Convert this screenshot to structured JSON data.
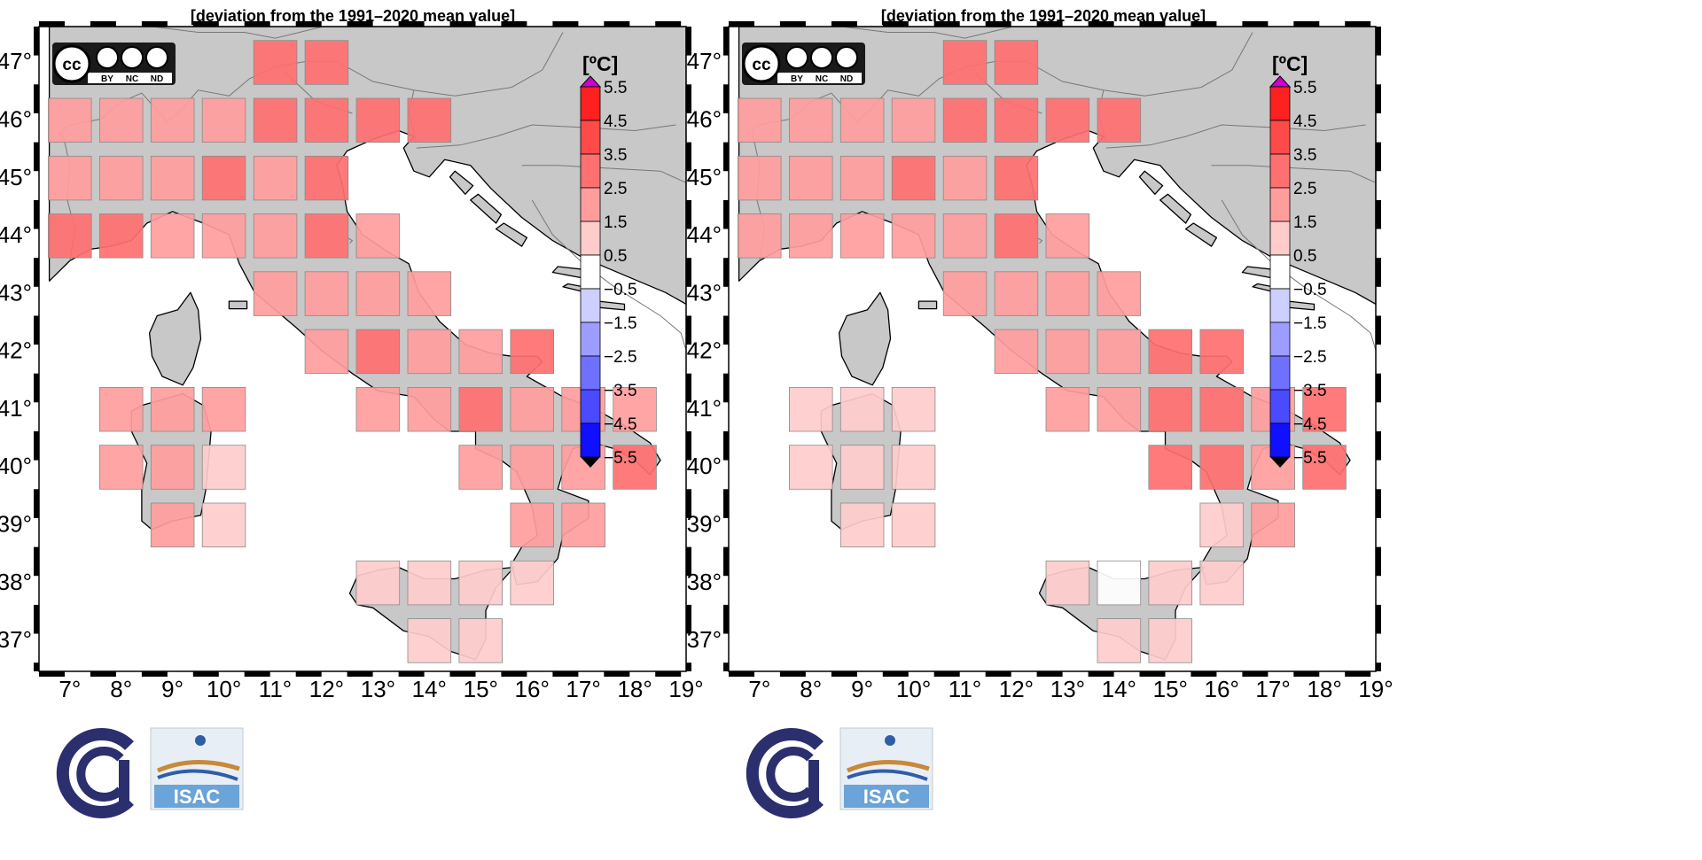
{
  "figure": {
    "colors": {
      "land": "#c8c8c8",
      "sea": "#ffffff",
      "coast": "#000000",
      "border": "#777777",
      "over_arrow": "#cc00cc",
      "under_arrow": "#000000"
    }
  },
  "colorbar": {
    "unit": "[ºC]",
    "levels": [
      "5.5",
      "4.5",
      "3.5",
      "2.5",
      "1.5",
      "0.5",
      "−0.5",
      "−1.5",
      "−2.5",
      "−3.5",
      "−4.5",
      "−5.5"
    ],
    "classes": [
      {
        "range": "4.5 to 5.5",
        "color": "#ff2020"
      },
      {
        "range": "3.5 to 4.5",
        "color": "#ff4a4a"
      },
      {
        "range": "2.5 to 3.5",
        "color": "#ff7070"
      },
      {
        "range": "1.5 to 2.5",
        "color": "#ff9d9d"
      },
      {
        "range": "0.5 to 1.5",
        "color": "#ffcccc"
      },
      {
        "range": "-0.5 to 0.5",
        "color": "#ffffff"
      },
      {
        "range": "-1.5 to -0.5",
        "color": "#cccfff"
      },
      {
        "range": "-2.5 to -1.5",
        "color": "#9d9dff"
      },
      {
        "range": "-3.5 to -2.5",
        "color": "#7070ff"
      },
      {
        "range": "-4.5 to -3.5",
        "color": "#4a4aff"
      },
      {
        "range": "-5.5 to -4.5",
        "color": "#1010ff"
      }
    ]
  },
  "axes": {
    "lon_ticks": [
      "7°",
      "8°",
      "9°",
      "10°",
      "11°",
      "12°",
      "13°",
      "14°",
      "15°",
      "16°",
      "17°",
      "18°",
      "19°"
    ],
    "lat_ticks": [
      "47°",
      "46°",
      "45°",
      "44°",
      "43°",
      "42°",
      "41°",
      "40°",
      "39°",
      "38°",
      "37°"
    ]
  },
  "logos": {
    "license": {
      "cc": "cc",
      "by": "BY",
      "nc": "NC",
      "nd": "ND"
    },
    "institute": "ISAC"
  },
  "maps": [
    {
      "title": "[deviation from the 1991–2020 mean value]",
      "cells": [
        {
          "lon": 11,
          "lat": 47,
          "class": 2
        },
        {
          "lon": 12,
          "lat": 47,
          "class": 2
        },
        {
          "lon": 7,
          "lat": 46,
          "class": 3
        },
        {
          "lon": 8,
          "lat": 46,
          "class": 3
        },
        {
          "lon": 9,
          "lat": 46,
          "class": 3
        },
        {
          "lon": 10,
          "lat": 46,
          "class": 3
        },
        {
          "lon": 11,
          "lat": 46,
          "class": 2
        },
        {
          "lon": 12,
          "lat": 46,
          "class": 2
        },
        {
          "lon": 13,
          "lat": 46,
          "class": 2
        },
        {
          "lon": 14,
          "lat": 46,
          "class": 2
        },
        {
          "lon": 7,
          "lat": 45,
          "class": 3
        },
        {
          "lon": 8,
          "lat": 45,
          "class": 3
        },
        {
          "lon": 9,
          "lat": 45,
          "class": 3
        },
        {
          "lon": 10,
          "lat": 45,
          "class": 2
        },
        {
          "lon": 11,
          "lat": 45,
          "class": 3
        },
        {
          "lon": 12,
          "lat": 45,
          "class": 2
        },
        {
          "lon": 7,
          "lat": 44,
          "class": 2
        },
        {
          "lon": 8,
          "lat": 44,
          "class": 2
        },
        {
          "lon": 9,
          "lat": 44,
          "class": 3
        },
        {
          "lon": 10,
          "lat": 44,
          "class": 3
        },
        {
          "lon": 11,
          "lat": 44,
          "class": 3
        },
        {
          "lon": 12,
          "lat": 44,
          "class": 2
        },
        {
          "lon": 13,
          "lat": 44,
          "class": 3
        },
        {
          "lon": 11,
          "lat": 43,
          "class": 3
        },
        {
          "lon": 12,
          "lat": 43,
          "class": 3
        },
        {
          "lon": 13,
          "lat": 43,
          "class": 3
        },
        {
          "lon": 14,
          "lat": 43,
          "class": 3
        },
        {
          "lon": 12,
          "lat": 42,
          "class": 3
        },
        {
          "lon": 13,
          "lat": 42,
          "class": 2
        },
        {
          "lon": 14,
          "lat": 42,
          "class": 3
        },
        {
          "lon": 15,
          "lat": 42,
          "class": 3
        },
        {
          "lon": 16,
          "lat": 42,
          "class": 2
        },
        {
          "lon": 8,
          "lat": 41,
          "class": 3
        },
        {
          "lon": 9,
          "lat": 41,
          "class": 3
        },
        {
          "lon": 10,
          "lat": 41,
          "class": 3
        },
        {
          "lon": 13,
          "lat": 41,
          "class": 3
        },
        {
          "lon": 14,
          "lat": 41,
          "class": 3
        },
        {
          "lon": 15,
          "lat": 41,
          "class": 2
        },
        {
          "lon": 16,
          "lat": 41,
          "class": 3
        },
        {
          "lon": 17,
          "lat": 41,
          "class": 3
        },
        {
          "lon": 18,
          "lat": 41,
          "class": 3
        },
        {
          "lon": 8,
          "lat": 40,
          "class": 3
        },
        {
          "lon": 9,
          "lat": 40,
          "class": 3
        },
        {
          "lon": 10,
          "lat": 40,
          "class": 4
        },
        {
          "lon": 15,
          "lat": 40,
          "class": 3
        },
        {
          "lon": 16,
          "lat": 40,
          "class": 3
        },
        {
          "lon": 17,
          "lat": 40,
          "class": 3
        },
        {
          "lon": 18,
          "lat": 40,
          "class": 2
        },
        {
          "lon": 9,
          "lat": 39,
          "class": 3
        },
        {
          "lon": 10,
          "lat": 39,
          "class": 4
        },
        {
          "lon": 16,
          "lat": 39,
          "class": 3
        },
        {
          "lon": 17,
          "lat": 39,
          "class": 3
        },
        {
          "lon": 13,
          "lat": 38,
          "class": 4
        },
        {
          "lon": 14,
          "lat": 38,
          "class": 4
        },
        {
          "lon": 15,
          "lat": 38,
          "class": 4
        },
        {
          "lon": 16,
          "lat": 38,
          "class": 4
        },
        {
          "lon": 14,
          "lat": 37,
          "class": 4
        },
        {
          "lon": 15,
          "lat": 37,
          "class": 4
        }
      ]
    },
    {
      "title": "[deviation from the 1991–2020 mean value]",
      "cells": [
        {
          "lon": 11,
          "lat": 47,
          "class": 2
        },
        {
          "lon": 12,
          "lat": 47,
          "class": 2
        },
        {
          "lon": 7,
          "lat": 46,
          "class": 3
        },
        {
          "lon": 8,
          "lat": 46,
          "class": 3
        },
        {
          "lon": 9,
          "lat": 46,
          "class": 3
        },
        {
          "lon": 10,
          "lat": 46,
          "class": 3
        },
        {
          "lon": 11,
          "lat": 46,
          "class": 2
        },
        {
          "lon": 12,
          "lat": 46,
          "class": 2
        },
        {
          "lon": 13,
          "lat": 46,
          "class": 2
        },
        {
          "lon": 14,
          "lat": 46,
          "class": 2
        },
        {
          "lon": 7,
          "lat": 45,
          "class": 3
        },
        {
          "lon": 8,
          "lat": 45,
          "class": 3
        },
        {
          "lon": 9,
          "lat": 45,
          "class": 3
        },
        {
          "lon": 10,
          "lat": 45,
          "class": 2
        },
        {
          "lon": 11,
          "lat": 45,
          "class": 3
        },
        {
          "lon": 12,
          "lat": 45,
          "class": 2
        },
        {
          "lon": 7,
          "lat": 44,
          "class": 3
        },
        {
          "lon": 8,
          "lat": 44,
          "class": 3
        },
        {
          "lon": 9,
          "lat": 44,
          "class": 3
        },
        {
          "lon": 10,
          "lat": 44,
          "class": 3
        },
        {
          "lon": 11,
          "lat": 44,
          "class": 3
        },
        {
          "lon": 12,
          "lat": 44,
          "class": 2
        },
        {
          "lon": 13,
          "lat": 44,
          "class": 3
        },
        {
          "lon": 11,
          "lat": 43,
          "class": 3
        },
        {
          "lon": 12,
          "lat": 43,
          "class": 3
        },
        {
          "lon": 13,
          "lat": 43,
          "class": 3
        },
        {
          "lon": 14,
          "lat": 43,
          "class": 3
        },
        {
          "lon": 12,
          "lat": 42,
          "class": 3
        },
        {
          "lon": 13,
          "lat": 42,
          "class": 3
        },
        {
          "lon": 14,
          "lat": 42,
          "class": 3
        },
        {
          "lon": 15,
          "lat": 42,
          "class": 2
        },
        {
          "lon": 16,
          "lat": 42,
          "class": 2
        },
        {
          "lon": 8,
          "lat": 41,
          "class": 4
        },
        {
          "lon": 9,
          "lat": 41,
          "class": 4
        },
        {
          "lon": 10,
          "lat": 41,
          "class": 4
        },
        {
          "lon": 13,
          "lat": 41,
          "class": 3
        },
        {
          "lon": 14,
          "lat": 41,
          "class": 3
        },
        {
          "lon": 15,
          "lat": 41,
          "class": 2
        },
        {
          "lon": 16,
          "lat": 41,
          "class": 2
        },
        {
          "lon": 17,
          "lat": 41,
          "class": 3
        },
        {
          "lon": 18,
          "lat": 41,
          "class": 2
        },
        {
          "lon": 8,
          "lat": 40,
          "class": 4
        },
        {
          "lon": 9,
          "lat": 40,
          "class": 4
        },
        {
          "lon": 10,
          "lat": 40,
          "class": 4
        },
        {
          "lon": 15,
          "lat": 40,
          "class": 2
        },
        {
          "lon": 16,
          "lat": 40,
          "class": 2
        },
        {
          "lon": 17,
          "lat": 40,
          "class": 3
        },
        {
          "lon": 18,
          "lat": 40,
          "class": 2
        },
        {
          "lon": 9,
          "lat": 39,
          "class": 4
        },
        {
          "lon": 10,
          "lat": 39,
          "class": 4
        },
        {
          "lon": 16,
          "lat": 39,
          "class": 4
        },
        {
          "lon": 17,
          "lat": 39,
          "class": 3
        },
        {
          "lon": 13,
          "lat": 38,
          "class": 4
        },
        {
          "lon": 14,
          "lat": 38,
          "class": 5
        },
        {
          "lon": 15,
          "lat": 38,
          "class": 4
        },
        {
          "lon": 16,
          "lat": 38,
          "class": 4
        },
        {
          "lon": 14,
          "lat": 37,
          "class": 4
        },
        {
          "lon": 15,
          "lat": 37,
          "class": 4
        }
      ]
    }
  ]
}
